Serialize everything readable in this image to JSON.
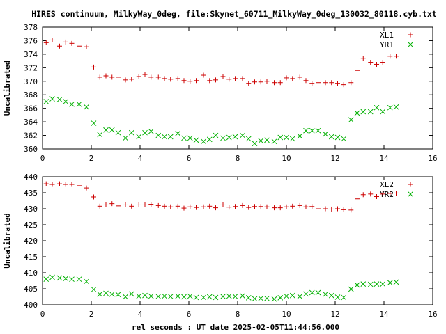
{
  "chart_data": {
    "title": "HIRES continuum, MilkyWay_0deg, file:Skynet_60711_MilkyWay_0deg_130032_80118.cyb.txt",
    "xlabel": "rel seconds : UT date 2025-02-05T11:44:56.000",
    "panels": [
      {
        "type": "scatter",
        "ylabel": "Uncalibrated",
        "xlim": [
          0,
          16
        ],
        "ylim": [
          360,
          378
        ],
        "xticks": [
          "0",
          "2",
          "4",
          "6",
          "8",
          "10",
          "12",
          "14",
          "16"
        ],
        "yticks": [
          "360",
          "362",
          "364",
          "366",
          "368",
          "370",
          "372",
          "374",
          "376",
          "378"
        ],
        "legend_position": "top-right",
        "series": [
          {
            "name": "XL1",
            "marker": "plus",
            "color": "#cc0000",
            "x": [
              0.15,
              0.4,
              0.7,
              0.95,
              1.2,
              1.5,
              1.8,
              2.1,
              2.35,
              2.6,
              2.85,
              3.1,
              3.4,
              3.65,
              3.95,
              4.2,
              4.45,
              4.75,
              5.0,
              5.25,
              5.55,
              5.8,
              6.05,
              6.3,
              6.6,
              6.85,
              7.1,
              7.4,
              7.65,
              7.9,
              8.2,
              8.45,
              8.7,
              8.95,
              9.2,
              9.5,
              9.75,
              10.0,
              10.25,
              10.55,
              10.8,
              11.05,
              11.3,
              11.6,
              11.85,
              12.1,
              12.35,
              12.65,
              12.9,
              13.15,
              13.45,
              13.7,
              13.95,
              14.25,
              14.5
            ],
            "y": [
              375.7,
              376.1,
              375.2,
              375.8,
              375.6,
              375.2,
              375.1,
              372.1,
              370.6,
              370.8,
              370.6,
              370.6,
              370.2,
              370.3,
              370.7,
              371.0,
              370.6,
              370.6,
              370.4,
              370.3,
              370.4,
              370.1,
              370.0,
              370.1,
              370.9,
              370.1,
              370.2,
              370.7,
              370.3,
              370.4,
              370.4,
              369.7,
              369.9,
              369.9,
              370.0,
              369.8,
              369.8,
              370.5,
              370.4,
              370.6,
              370.1,
              369.7,
              369.8,
              369.8,
              369.8,
              369.7,
              369.5,
              369.8,
              371.6,
              373.4,
              372.8,
              372.5,
              372.8,
              373.7,
              373.7
            ]
          },
          {
            "name": "YR1",
            "marker": "cross",
            "color": "#00b000",
            "x": [
              0.15,
              0.4,
              0.7,
              0.95,
              1.2,
              1.5,
              1.8,
              2.1,
              2.35,
              2.6,
              2.85,
              3.1,
              3.4,
              3.65,
              3.95,
              4.2,
              4.45,
              4.75,
              5.0,
              5.25,
              5.55,
              5.8,
              6.05,
              6.3,
              6.6,
              6.85,
              7.1,
              7.4,
              7.65,
              7.9,
              8.2,
              8.45,
              8.7,
              8.95,
              9.2,
              9.5,
              9.75,
              10.0,
              10.25,
              10.55,
              10.8,
              11.05,
              11.3,
              11.6,
              11.85,
              12.1,
              12.35,
              12.65,
              12.9,
              13.15,
              13.45,
              13.7,
              13.95,
              14.25,
              14.5
            ],
            "y": [
              367.0,
              367.4,
              367.3,
              367.0,
              366.6,
              366.6,
              366.2,
              363.8,
              362.1,
              362.8,
              362.8,
              362.4,
              361.6,
              362.4,
              361.8,
              362.4,
              362.6,
              362.0,
              361.8,
              361.8,
              362.3,
              361.6,
              361.6,
              361.3,
              361.1,
              361.4,
              362.0,
              361.6,
              361.7,
              361.8,
              362.0,
              361.5,
              360.8,
              361.2,
              361.3,
              361.1,
              361.7,
              361.7,
              361.5,
              361.9,
              362.7,
              362.7,
              362.7,
              362.2,
              361.8,
              361.7,
              361.5,
              364.3,
              365.3,
              365.5,
              365.5,
              366.1,
              365.5,
              366.1,
              366.2
            ]
          }
        ]
      },
      {
        "type": "scatter",
        "ylabel": "Uncalibrated",
        "xlim": [
          0,
          16
        ],
        "ylim": [
          400,
          440
        ],
        "xticks": [
          "0",
          "2",
          "4",
          "6",
          "8",
          "10",
          "12",
          "14",
          "16"
        ],
        "yticks": [
          "400",
          "405",
          "410",
          "415",
          "420",
          "425",
          "430",
          "435",
          "440"
        ],
        "legend_position": "top-right",
        "series": [
          {
            "name": "XL2",
            "marker": "plus",
            "color": "#cc0000",
            "x": [
              0.15,
              0.4,
              0.7,
              0.95,
              1.2,
              1.5,
              1.8,
              2.1,
              2.35,
              2.6,
              2.85,
              3.1,
              3.4,
              3.65,
              3.95,
              4.2,
              4.45,
              4.75,
              5.0,
              5.25,
              5.55,
              5.8,
              6.05,
              6.3,
              6.6,
              6.85,
              7.1,
              7.4,
              7.65,
              7.9,
              8.2,
              8.45,
              8.7,
              8.95,
              9.2,
              9.5,
              9.75,
              10.0,
              10.25,
              10.55,
              10.8,
              11.05,
              11.3,
              11.6,
              11.85,
              12.1,
              12.35,
              12.65,
              12.9,
              13.15,
              13.45,
              13.7,
              13.95,
              14.25,
              14.5
            ],
            "y": [
              437.8,
              437.6,
              437.8,
              437.6,
              437.6,
              437.2,
              436.5,
              433.7,
              430.8,
              431.2,
              431.6,
              430.9,
              431.2,
              430.8,
              431.2,
              431.2,
              431.4,
              431.0,
              430.8,
              430.6,
              430.8,
              430.2,
              430.6,
              430.4,
              430.6,
              430.8,
              430.3,
              431.2,
              430.5,
              430.7,
              431.0,
              430.4,
              430.7,
              430.7,
              430.6,
              430.3,
              430.3,
              430.6,
              430.8,
              431.0,
              430.6,
              430.7,
              430.0,
              430.0,
              429.9,
              430.0,
              429.7,
              429.6,
              433.1,
              434.4,
              434.6,
              433.8,
              434.6,
              434.8,
              434.9
            ]
          },
          {
            "name": "YR2",
            "marker": "cross",
            "color": "#00b000",
            "x": [
              0.15,
              0.4,
              0.7,
              0.95,
              1.2,
              1.5,
              1.8,
              2.1,
              2.35,
              2.6,
              2.85,
              3.1,
              3.4,
              3.65,
              3.95,
              4.2,
              4.45,
              4.75,
              5.0,
              5.25,
              5.55,
              5.8,
              6.05,
              6.3,
              6.6,
              6.85,
              7.1,
              7.4,
              7.65,
              7.9,
              8.2,
              8.45,
              8.7,
              8.95,
              9.2,
              9.5,
              9.75,
              10.0,
              10.25,
              10.55,
              10.8,
              11.05,
              11.3,
              11.6,
              11.85,
              12.1,
              12.35,
              12.65,
              12.9,
              13.15,
              13.45,
              13.7,
              13.95,
              14.25,
              14.5
            ],
            "y": [
              408.0,
              408.6,
              408.4,
              408.2,
              408.0,
              408.0,
              407.3,
              404.8,
              403.3,
              403.6,
              403.3,
              403.2,
              402.5,
              403.4,
              402.7,
              402.9,
              402.7,
              402.6,
              402.7,
              402.6,
              402.7,
              402.5,
              402.7,
              402.3,
              402.3,
              402.5,
              402.3,
              402.6,
              402.7,
              402.6,
              402.8,
              402.2,
              401.9,
              402.0,
              402.0,
              401.8,
              402.2,
              402.7,
              402.9,
              402.6,
              403.4,
              403.8,
              403.8,
              403.3,
              402.9,
              402.4,
              402.3,
              404.9,
              406.2,
              406.5,
              406.4,
              406.5,
              406.5,
              406.9,
              407.1
            ]
          }
        ]
      }
    ]
  }
}
